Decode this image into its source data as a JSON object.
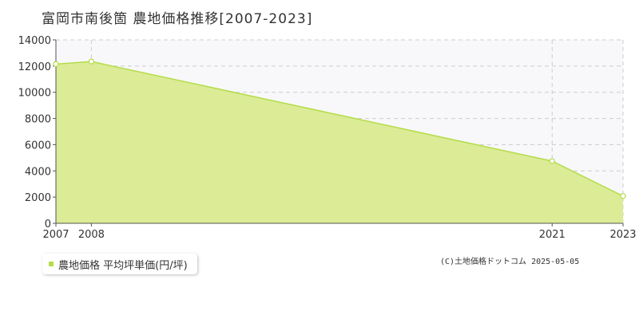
{
  "header": {
    "title": "富岡市南後箇 農地価格推移[2007-2023]"
  },
  "colors": {
    "fill": "#dbeb96",
    "line": "#b5dc4a",
    "grid": "#cccccc",
    "plot_bg": "#f8f8fa"
  },
  "chart_data": {
    "type": "area",
    "title": "富岡市南後箇 農地価格推移[2007-2023]",
    "x": [
      2007,
      2008,
      2021,
      2023
    ],
    "series": [
      {
        "name": "農地価格 平均坪単価(円/坪)",
        "values": [
          12150,
          12350,
          4750,
          2080
        ]
      }
    ],
    "x_ticks": [
      "2007",
      "2008",
      "2021",
      "2023"
    ],
    "y_ticks": [
      "0",
      "2000",
      "4000",
      "6000",
      "8000",
      "10000",
      "12000",
      "14000"
    ],
    "ylim": [
      0,
      14000
    ],
    "grid": true,
    "legend_position": "bottom-left"
  },
  "legend": {
    "label": "農地価格 平均坪単価(円/坪)"
  },
  "footer": {
    "copyright": "(C)土地価格ドットコム 2025-05-05"
  }
}
